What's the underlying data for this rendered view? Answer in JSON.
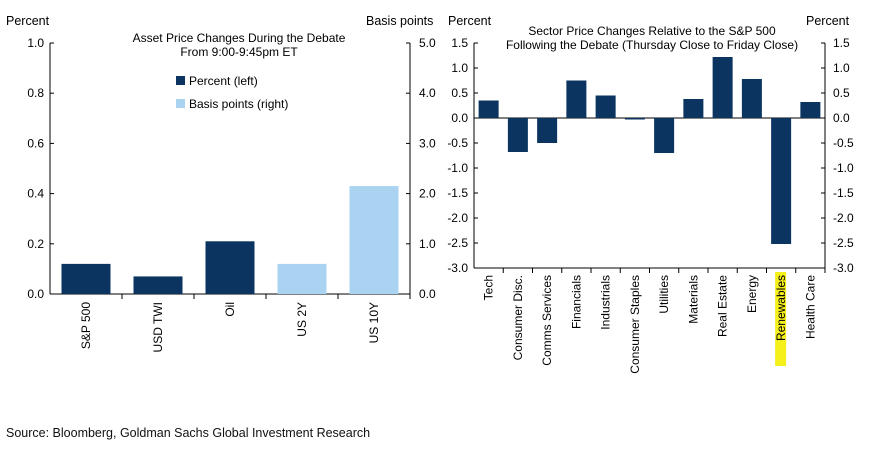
{
  "chart_data": [
    {
      "type": "bar",
      "title": [
        "Asset Price Changes  During the Debate",
        "From 9:00-9:45pm  ET"
      ],
      "y_left_label": "Percent",
      "y_right_label": "Basis points",
      "y_left_ticks": [
        "0.0",
        "0.2",
        "0.4",
        "0.6",
        "0.8",
        "1.0"
      ],
      "y_right_ticks": [
        "0.0",
        "1.0",
        "2.0",
        "3.0",
        "4.0",
        "5.0"
      ],
      "ylim_left": [
        0,
        1.0
      ],
      "ylim_right": [
        0,
        5.0
      ],
      "categories": [
        "S&P 500",
        "USD TWI",
        "Oil",
        "US 2Y",
        "US 10Y"
      ],
      "series": [
        {
          "name": "Percent (left)",
          "axis": "left",
          "color": "#0b3560",
          "values": [
            0.12,
            0.07,
            0.21,
            null,
            null
          ]
        },
        {
          "name": "Basis points (right)",
          "axis": "right",
          "color": "#a9d3f0",
          "values": [
            null,
            null,
            null,
            0.6,
            2.15
          ]
        }
      ],
      "legend_position": "top-center",
      "grid": false
    },
    {
      "type": "bar",
      "title": [
        "Sector Price Changes  Relative  to the S&P 500",
        "Following the Debate  (Thursday  Close to Friday Close)"
      ],
      "y_left_label": "Percent",
      "y_right_label": "Percent",
      "y_ticks": [
        "1.5",
        "1.0",
        "0.5",
        "0.0",
        "-0.5",
        "-1.0",
        "-1.5",
        "-2.0",
        "-2.5",
        "-3.0"
      ],
      "ylim": [
        -3.0,
        1.5
      ],
      "categories": [
        "Tech",
        "Consumer Disc.",
        "Comms Services",
        "Financials",
        "Industrials",
        "Consumer Staples",
        "Utilities",
        "Materials",
        "Real Estate",
        "Energy",
        "Renewables",
        "Health Care"
      ],
      "values": [
        0.35,
        -0.68,
        -0.5,
        0.75,
        0.45,
        -0.03,
        -0.7,
        0.38,
        1.22,
        0.78,
        -2.52,
        0.32
      ],
      "bar_color": "#0b3560",
      "highlight_category": "Renewables",
      "highlight_color": "#f5ef1a",
      "grid": false
    }
  ],
  "source": "Source: Bloomberg, Goldman Sachs Global Investment Research"
}
